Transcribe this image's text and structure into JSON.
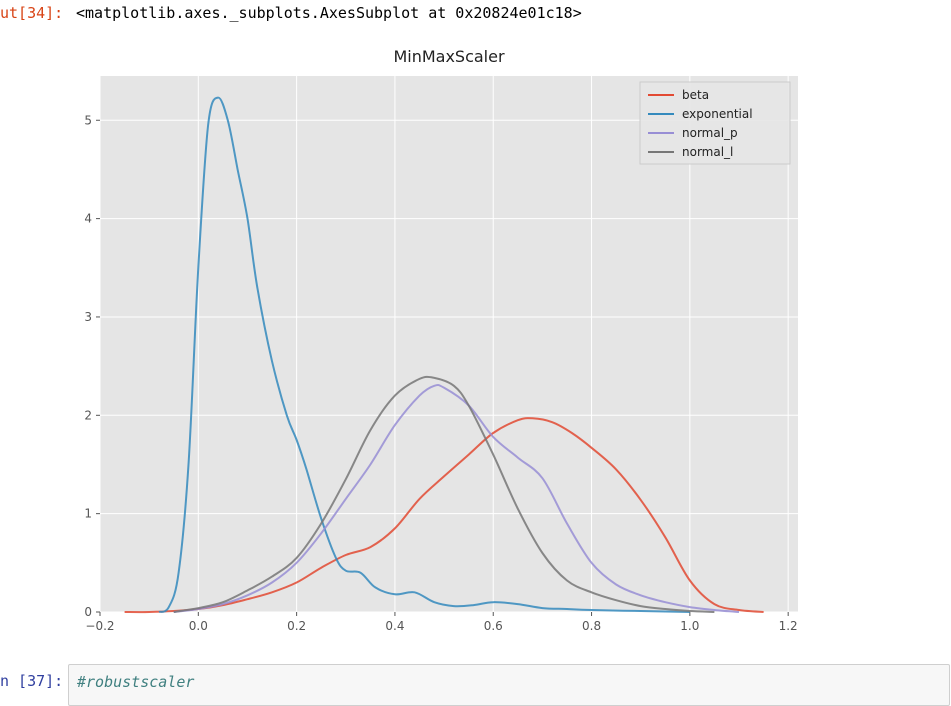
{
  "output_cell": {
    "prompt": "ut[34]:",
    "repr": "<matplotlib.axes._subplots.AxesSubplot at 0x20824e01c18>"
  },
  "input_cell": {
    "prompt": "n [37]:",
    "code": "#robustscaler"
  },
  "chart_data": {
    "type": "line",
    "title": "MinMaxScaler",
    "xlabel": "",
    "ylabel": "",
    "xlim": [
      -0.2,
      1.22
    ],
    "ylim": [
      0,
      5.45
    ],
    "xticks": [
      -0.2,
      0.0,
      0.2,
      0.4,
      0.6,
      0.8,
      1.0,
      1.2
    ],
    "xtick_labels": [
      "−0.2",
      "0.0",
      "0.2",
      "0.4",
      "0.6",
      "0.8",
      "1.0",
      "1.2"
    ],
    "yticks": [
      0,
      1,
      2,
      3,
      4,
      5
    ],
    "ytick_labels": [
      "0",
      "1",
      "2",
      "3",
      "4",
      "5"
    ],
    "grid": true,
    "legend_position": "top-right",
    "colors": {
      "background": "#e5e5e5",
      "grid": "#ffffff",
      "tick_text": "#555555"
    },
    "series": [
      {
        "name": "beta",
        "color": "#e24a33",
        "x": [
          -0.15,
          -0.1,
          -0.05,
          0.0,
          0.05,
          0.1,
          0.15,
          0.2,
          0.25,
          0.3,
          0.35,
          0.4,
          0.45,
          0.5,
          0.55,
          0.6,
          0.65,
          0.68,
          0.72,
          0.76,
          0.8,
          0.85,
          0.9,
          0.95,
          1.0,
          1.05,
          1.1,
          1.15
        ],
        "y": [
          0.0,
          0.0,
          0.01,
          0.03,
          0.07,
          0.13,
          0.2,
          0.3,
          0.45,
          0.58,
          0.66,
          0.85,
          1.15,
          1.38,
          1.6,
          1.82,
          1.95,
          1.97,
          1.93,
          1.82,
          1.67,
          1.45,
          1.14,
          0.76,
          0.32,
          0.08,
          0.02,
          0.0
        ]
      },
      {
        "name": "exponential",
        "color": "#348abd",
        "x": [
          -0.08,
          -0.06,
          -0.04,
          -0.02,
          0.0,
          0.02,
          0.04,
          0.06,
          0.08,
          0.1,
          0.12,
          0.15,
          0.18,
          0.2,
          0.22,
          0.25,
          0.28,
          0.3,
          0.33,
          0.36,
          0.4,
          0.44,
          0.48,
          0.52,
          0.56,
          0.6,
          0.65,
          0.7,
          0.75,
          0.8,
          0.9,
          1.0
        ],
        "y": [
          0.0,
          0.05,
          0.4,
          1.5,
          3.5,
          4.95,
          5.23,
          5.0,
          4.5,
          4.0,
          3.3,
          2.55,
          2.0,
          1.75,
          1.45,
          0.95,
          0.55,
          0.42,
          0.4,
          0.25,
          0.18,
          0.2,
          0.1,
          0.06,
          0.07,
          0.1,
          0.08,
          0.04,
          0.03,
          0.02,
          0.01,
          0.0
        ]
      },
      {
        "name": "normal_p",
        "color": "#988ed5",
        "x": [
          -0.05,
          0.0,
          0.05,
          0.1,
          0.15,
          0.2,
          0.25,
          0.3,
          0.35,
          0.4,
          0.45,
          0.48,
          0.5,
          0.55,
          0.6,
          0.65,
          0.7,
          0.75,
          0.8,
          0.85,
          0.9,
          0.95,
          1.0,
          1.05,
          1.1
        ],
        "y": [
          0.0,
          0.03,
          0.08,
          0.17,
          0.3,
          0.5,
          0.8,
          1.15,
          1.5,
          1.9,
          2.2,
          2.3,
          2.28,
          2.1,
          1.78,
          1.57,
          1.36,
          0.9,
          0.5,
          0.28,
          0.17,
          0.1,
          0.05,
          0.02,
          0.0
        ]
      },
      {
        "name": "normal_l",
        "color": "#777777",
        "x": [
          -0.05,
          0.0,
          0.05,
          0.1,
          0.15,
          0.2,
          0.25,
          0.3,
          0.35,
          0.4,
          0.45,
          0.48,
          0.52,
          0.55,
          0.6,
          0.65,
          0.7,
          0.75,
          0.8,
          0.85,
          0.9,
          0.95,
          1.0,
          1.05
        ],
        "y": [
          0.0,
          0.04,
          0.1,
          0.22,
          0.36,
          0.55,
          0.9,
          1.35,
          1.85,
          2.2,
          2.37,
          2.38,
          2.3,
          2.1,
          1.6,
          1.05,
          0.6,
          0.32,
          0.2,
          0.12,
          0.06,
          0.03,
          0.01,
          0.0
        ]
      }
    ]
  }
}
